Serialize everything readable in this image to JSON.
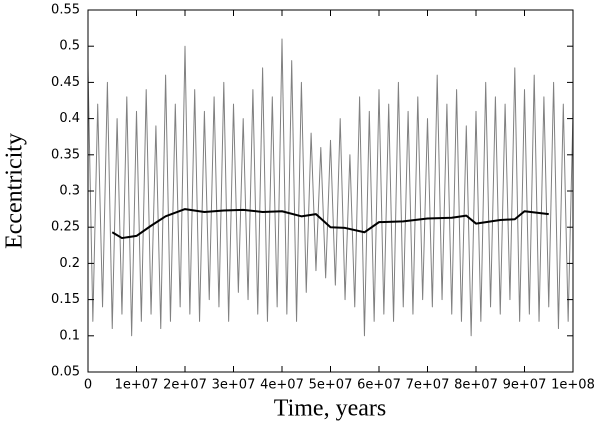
{
  "chart_data": {
    "type": "line",
    "xlabel": "Time, years",
    "ylabel": "Eccentricity",
    "xlim": [
      0,
      100000000
    ],
    "xticks": [
      0,
      {
        "value": 10000000,
        "label": "1e+07"
      },
      {
        "value": 20000000,
        "label": "2e+07"
      },
      {
        "value": 30000000,
        "label": "3e+07"
      },
      {
        "value": 40000000,
        "label": "4e+07"
      },
      {
        "value": 50000000,
        "label": "5e+07"
      },
      {
        "value": 60000000,
        "label": "6e+07"
      },
      {
        "value": 70000000,
        "label": "7e+07"
      },
      {
        "value": 80000000,
        "label": "8e+07"
      },
      {
        "value": 90000000,
        "label": "9e+07"
      },
      {
        "value": 100000000,
        "label": "1e+08"
      }
    ],
    "ylim": [
      0.05,
      0.55
    ],
    "yticks": [
      0.05,
      0.1,
      0.15,
      0.2,
      0.25,
      0.3,
      0.35,
      0.4,
      0.45,
      0.5,
      0.55
    ],
    "series": [
      {
        "color": "#808080",
        "width": 1,
        "x": [
          0,
          1000000,
          2000000,
          3000000,
          4000000,
          5000000,
          6000000,
          7000000,
          8000000,
          9000000,
          10000000,
          11000000,
          12000000,
          13000000,
          14000000,
          15000000,
          16000000,
          17000000,
          18000000,
          19000000,
          20000000,
          21000000,
          22000000,
          23000000,
          24000000,
          25000000,
          26000000,
          27000000,
          28000000,
          29000000,
          30000000,
          31000000,
          32000000,
          33000000,
          34000000,
          35000000,
          36000000,
          37000000,
          38000000,
          39000000,
          40000000,
          41000000,
          42000000,
          43000000,
          44000000,
          45000000,
          46000000,
          47000000,
          48000000,
          49000000,
          50000000,
          51000000,
          52000000,
          53000000,
          54000000,
          55000000,
          56000000,
          57000000,
          58000000,
          59000000,
          60000000,
          61000000,
          62000000,
          63000000,
          64000000,
          65000000,
          66000000,
          67000000,
          68000000,
          69000000,
          70000000,
          71000000,
          72000000,
          73000000,
          74000000,
          75000000,
          76000000,
          77000000,
          78000000,
          79000000,
          80000000,
          81000000,
          82000000,
          83000000,
          84000000,
          85000000,
          86000000,
          87000000,
          88000000,
          89000000,
          90000000,
          91000000,
          92000000,
          93000000,
          94000000,
          95000000,
          96000000,
          97000000,
          98000000,
          99000000,
          100000000
        ],
        "values": [
          0.47,
          0.12,
          0.42,
          0.14,
          0.45,
          0.11,
          0.4,
          0.13,
          0.43,
          0.1,
          0.41,
          0.12,
          0.44,
          0.13,
          0.39,
          0.11,
          0.46,
          0.12,
          0.42,
          0.14,
          0.5,
          0.13,
          0.44,
          0.12,
          0.41,
          0.15,
          0.43,
          0.14,
          0.45,
          0.12,
          0.42,
          0.16,
          0.4,
          0.15,
          0.44,
          0.13,
          0.47,
          0.12,
          0.43,
          0.14,
          0.51,
          0.13,
          0.48,
          0.12,
          0.45,
          0.16,
          0.38,
          0.19,
          0.36,
          0.18,
          0.37,
          0.17,
          0.4,
          0.15,
          0.35,
          0.14,
          0.43,
          0.1,
          0.41,
          0.12,
          0.44,
          0.13,
          0.42,
          0.12,
          0.45,
          0.14,
          0.41,
          0.13,
          0.43,
          0.15,
          0.4,
          0.14,
          0.46,
          0.15,
          0.42,
          0.13,
          0.44,
          0.12,
          0.39,
          0.1,
          0.41,
          0.12,
          0.45,
          0.14,
          0.43,
          0.13,
          0.42,
          0.15,
          0.47,
          0.12,
          0.44,
          0.13,
          0.46,
          0.12,
          0.43,
          0.14,
          0.45,
          0.11,
          0.42,
          0.12,
          0.41
        ]
      },
      {
        "color": "#000000",
        "width": 2,
        "x": [
          5000000,
          7000000,
          10000000,
          13000000,
          16000000,
          20000000,
          24000000,
          28000000,
          32000000,
          36000000,
          40000000,
          44000000,
          47000000,
          50000000,
          53000000,
          57000000,
          60000000,
          65000000,
          70000000,
          75000000,
          78000000,
          80000000,
          85000000,
          88000000,
          90000000,
          95000000
        ],
        "values": [
          0.243,
          0.235,
          0.238,
          0.252,
          0.265,
          0.275,
          0.271,
          0.273,
          0.274,
          0.271,
          0.272,
          0.265,
          0.268,
          0.25,
          0.249,
          0.243,
          0.257,
          0.258,
          0.262,
          0.263,
          0.266,
          0.255,
          0.26,
          0.261,
          0.272,
          0.268
        ]
      }
    ]
  }
}
